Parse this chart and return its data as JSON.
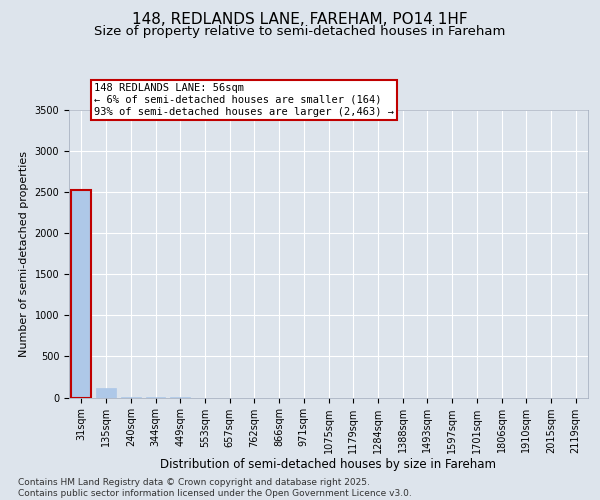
{
  "title1": "148, REDLANDS LANE, FAREHAM, PO14 1HF",
  "title2": "Size of property relative to semi-detached houses in Fareham",
  "xlabel": "Distribution of semi-detached houses by size in Fareham",
  "ylabel": "Number of semi-detached properties",
  "categories": [
    "31sqm",
    "135sqm",
    "240sqm",
    "344sqm",
    "449sqm",
    "553sqm",
    "657sqm",
    "762sqm",
    "866sqm",
    "971sqm",
    "1075sqm",
    "1179sqm",
    "1284sqm",
    "1388sqm",
    "1493sqm",
    "1597sqm",
    "1701sqm",
    "1806sqm",
    "1910sqm",
    "2015sqm",
    "2119sqm"
  ],
  "values": [
    2530,
    110,
    5,
    2,
    1,
    0,
    0,
    0,
    0,
    0,
    0,
    0,
    0,
    0,
    0,
    0,
    0,
    0,
    0,
    0,
    0
  ],
  "bar_color": "#aec8e8",
  "highlight_bar_index": 0,
  "highlight_bar_edge_color": "#c00000",
  "annotation_text": "148 REDLANDS LANE: 56sqm\n← 6% of semi-detached houses are smaller (164)\n93% of semi-detached houses are larger (2,463) →",
  "annotation_box_color": "#ffffff",
  "annotation_box_edge_color": "#c00000",
  "ylim": [
    0,
    3500
  ],
  "yticks": [
    0,
    500,
    1000,
    1500,
    2000,
    2500,
    3000,
    3500
  ],
  "bg_color": "#dde4ec",
  "plot_bg_color": "#dde4ec",
  "grid_color": "#ffffff",
  "footer_text": "Contains HM Land Registry data © Crown copyright and database right 2025.\nContains public sector information licensed under the Open Government Licence v3.0.",
  "title1_fontsize": 11,
  "title2_fontsize": 9.5,
  "xlabel_fontsize": 8.5,
  "ylabel_fontsize": 8,
  "tick_fontsize": 7,
  "annotation_fontsize": 7.5,
  "footer_fontsize": 6.5
}
